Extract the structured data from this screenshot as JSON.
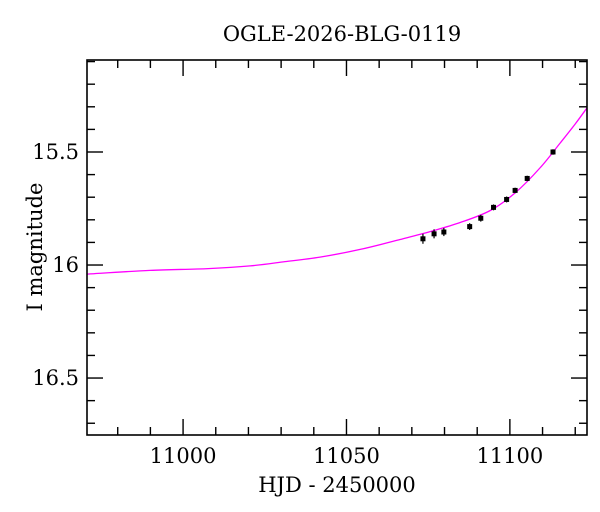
{
  "figure": {
    "title": "OGLE-2026-BLG-0119",
    "xlabel": "HJD - 2450000",
    "ylabel": "I magnitude"
  },
  "colors": {
    "background": "#ffffff",
    "axis": "#000000",
    "text": "#000000",
    "model_curve": "#ff00ff",
    "data_points": "#000000"
  },
  "chart_data": {
    "type": "scatter",
    "title": "OGLE-2026-BLG-0119",
    "xlabel": "HJD - 2450000",
    "ylabel": "I magnitude",
    "y_axis_inverted": true,
    "grid": false,
    "legend": false,
    "x_range": [
      10970.6,
      11123.6
    ],
    "y_range": [
      15.093,
      16.752
    ],
    "x_ticks_major": [
      11000,
      11050,
      11100
    ],
    "x_tick_labels": [
      "11000",
      "11050",
      "11100"
    ],
    "x_tick_minor_step": 10,
    "y_ticks_major": [
      15.5,
      16.0,
      16.5
    ],
    "y_tick_labels": [
      "15.5",
      "16",
      "16.5"
    ],
    "y_tick_minor_step": 0.1,
    "model_curve": {
      "name": "microlensing-model-fit",
      "color": "#ff00ff",
      "points": [
        [
          10970.6,
          16.04
        ],
        [
          10989.9,
          16.024
        ],
        [
          11007.7,
          16.016
        ],
        [
          11020.5,
          16.004
        ],
        [
          11031.2,
          15.985
        ],
        [
          11041.9,
          15.965
        ],
        [
          11054.2,
          15.931
        ],
        [
          11066.4,
          15.887
        ],
        [
          11075.6,
          15.852
        ],
        [
          11084.8,
          15.812
        ],
        [
          11094.0,
          15.759
        ],
        [
          11101.6,
          15.681
        ],
        [
          11109.2,
          15.571
        ],
        [
          11115.4,
          15.46
        ],
        [
          11120.0,
          15.376
        ],
        [
          11123.6,
          15.305
        ]
      ]
    },
    "observations": {
      "name": "I-band-photometry",
      "marker": "square",
      "color": "#000000",
      "points": [
        {
          "hjd": 11073.4,
          "mag": 15.884,
          "err": 0.022
        },
        {
          "hjd": 11076.8,
          "mag": 15.862,
          "err": 0.02
        },
        {
          "hjd": 11079.8,
          "mag": 15.854,
          "err": 0.018
        },
        {
          "hjd": 11087.7,
          "mag": 15.83,
          "err": 0.015
        },
        {
          "hjd": 11091.1,
          "mag": 15.793,
          "err": 0.015
        },
        {
          "hjd": 11095.0,
          "mag": 15.745,
          "err": 0.013
        },
        {
          "hjd": 11099.0,
          "mag": 15.71,
          "err": 0.013
        },
        {
          "hjd": 11101.6,
          "mag": 15.67,
          "err": 0.012
        },
        {
          "hjd": 11105.3,
          "mag": 15.617,
          "err": 0.012
        },
        {
          "hjd": 11113.2,
          "mag": 15.5,
          "err": 0.012
        }
      ]
    }
  }
}
